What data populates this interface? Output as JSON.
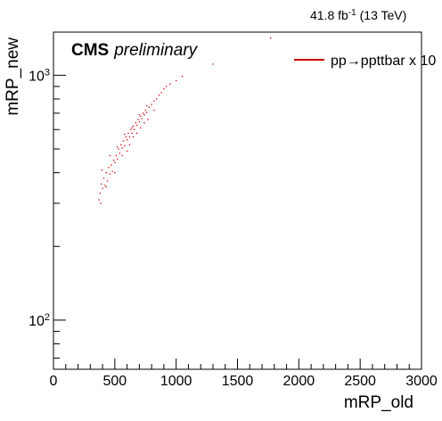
{
  "chart_data": {
    "type": "scatter",
    "xlabel": "mRP_old",
    "ylabel": "mRP_new",
    "xlim": [
      0,
      3000
    ],
    "ylim": [
      63,
      1500
    ],
    "yscale": "log",
    "x_ticks": [
      "0",
      "500",
      "1000",
      "1500",
      "2000",
      "2500",
      "3000"
    ],
    "y_ticks": [
      {
        "value": 100,
        "base": "10",
        "exp": "2"
      },
      {
        "value": 1000,
        "base": "10",
        "exp": "3"
      }
    ],
    "grid": false,
    "legend_position": "top-right",
    "lumi": {
      "value": "41.8 fb",
      "exp": "-1",
      "energy": " (13 TeV)"
    },
    "cms_label": "CMS",
    "cms_status": "preliminary",
    "series": [
      {
        "name": "pp→ppttbar x 10",
        "color": "#cc0000",
        "points": [
          [
            370,
            310
          ],
          [
            380,
            330
          ],
          [
            385,
            300
          ],
          [
            390,
            360
          ],
          [
            395,
            410
          ],
          [
            400,
            345
          ],
          [
            410,
            380
          ],
          [
            420,
            355
          ],
          [
            430,
            400
          ],
          [
            440,
            370
          ],
          [
            450,
            420
          ],
          [
            460,
            395
          ],
          [
            470,
            430
          ],
          [
            480,
            405
          ],
          [
            490,
            450
          ],
          [
            500,
            440
          ],
          [
            510,
            470
          ],
          [
            520,
            455
          ],
          [
            530,
            500
          ],
          [
            540,
            480
          ],
          [
            550,
            520
          ],
          [
            560,
            505
          ],
          [
            570,
            540
          ],
          [
            580,
            515
          ],
          [
            590,
            560
          ],
          [
            600,
            545
          ],
          [
            610,
            580
          ],
          [
            620,
            560
          ],
          [
            630,
            600
          ],
          [
            640,
            580
          ],
          [
            650,
            620
          ],
          [
            660,
            600
          ],
          [
            670,
            640
          ],
          [
            680,
            625
          ],
          [
            690,
            660
          ],
          [
            700,
            645
          ],
          [
            710,
            680
          ],
          [
            720,
            665
          ],
          [
            730,
            700
          ],
          [
            740,
            690
          ],
          [
            750,
            720
          ],
          [
            760,
            705
          ],
          [
            780,
            740
          ],
          [
            800,
            760
          ],
          [
            820,
            785
          ],
          [
            840,
            800
          ],
          [
            860,
            830
          ],
          [
            880,
            850
          ],
          [
            900,
            880
          ],
          [
            920,
            900
          ],
          [
            950,
            920
          ],
          [
            1000,
            950
          ],
          [
            1050,
            990
          ],
          [
            1300,
            1110
          ],
          [
            1770,
            1420
          ],
          [
            460,
            470
          ],
          [
            520,
            510
          ],
          [
            580,
            575
          ],
          [
            640,
            610
          ],
          [
            700,
            690
          ],
          [
            760,
            750
          ],
          [
            560,
            470
          ],
          [
            620,
            520
          ],
          [
            680,
            580
          ],
          [
            740,
            640
          ],
          [
            500,
            400
          ],
          [
            430,
            350
          ],
          [
            650,
            560
          ],
          [
            710,
            610
          ],
          [
            770,
            660
          ],
          [
            820,
            720
          ],
          [
            600,
            490
          ]
        ]
      }
    ]
  }
}
